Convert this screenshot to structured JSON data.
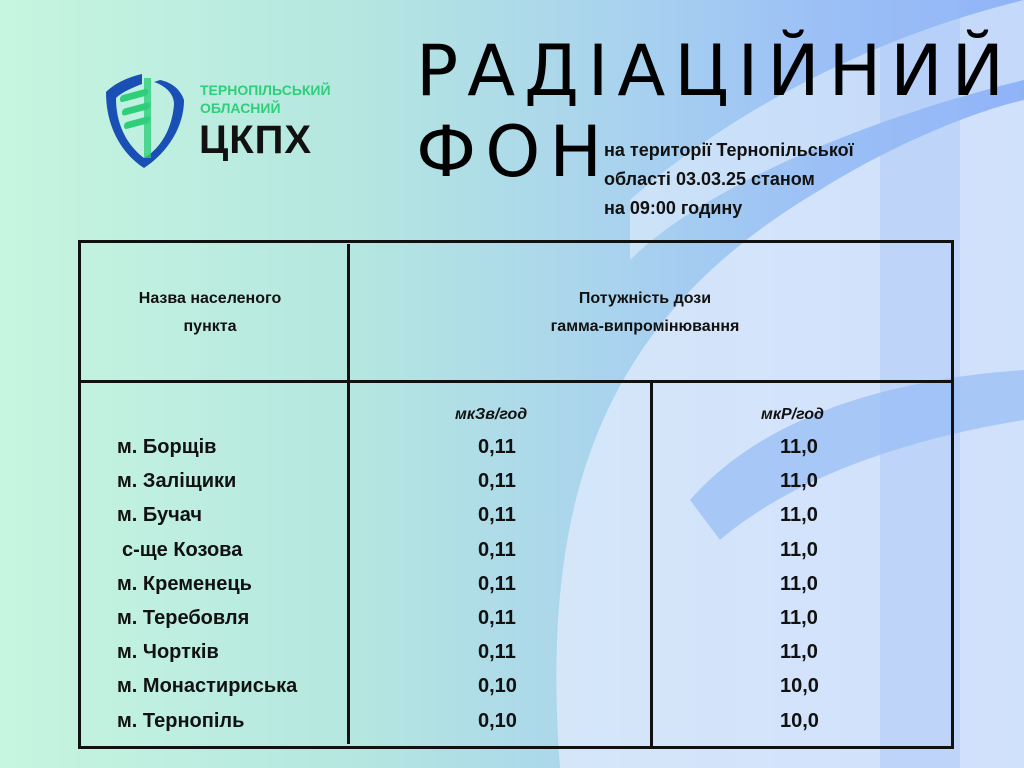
{
  "logo": {
    "line1": "ТЕРНОПІЛЬСЬКИЙ",
    "line2": "ОБЛАСНИЙ",
    "abbr": "ЦКПХ"
  },
  "title": {
    "line1": "РАДІАЦІЙНИЙ",
    "line2": "ФОН"
  },
  "subtitle": [
    "на території Тернопільської",
    "області 03.03.25 станом",
    "на 09:00 годину"
  ],
  "colors": {
    "brand_green": "#2fce7b",
    "brand_blue": "#1a4fb5"
  },
  "table": {
    "col_name_header": [
      "Назва населеного",
      "пункта"
    ],
    "col_dose_header": [
      "Потужність дози",
      "гамма-випромінювання"
    ],
    "unit1": "мкЗв/год",
    "unit2": "мкР/год",
    "rows": [
      {
        "name": "м. Борщів",
        "sv": "0,11",
        "r": "11,0"
      },
      {
        "name": "м. Заліщики",
        "sv": "0,11",
        "r": "11,0"
      },
      {
        "name": "м. Бучач",
        "sv": "0,11",
        "r": "11,0"
      },
      {
        "name": "с-ще  Козова",
        "sv": "0,11",
        "r": "11,0"
      },
      {
        "name": "м. Кременець",
        "sv": "0,11",
        "r": "11,0"
      },
      {
        "name": "м. Теребовля",
        "sv": "0,11",
        "r": "11,0"
      },
      {
        "name": "м. Чортків",
        "sv": "0,11",
        "r": "11,0"
      },
      {
        "name": "м. Монастириська",
        "sv": "0,10",
        "r": "10,0"
      },
      {
        "name": "м. Тернопіль",
        "sv": "0,10",
        "r": "10,0"
      }
    ]
  }
}
